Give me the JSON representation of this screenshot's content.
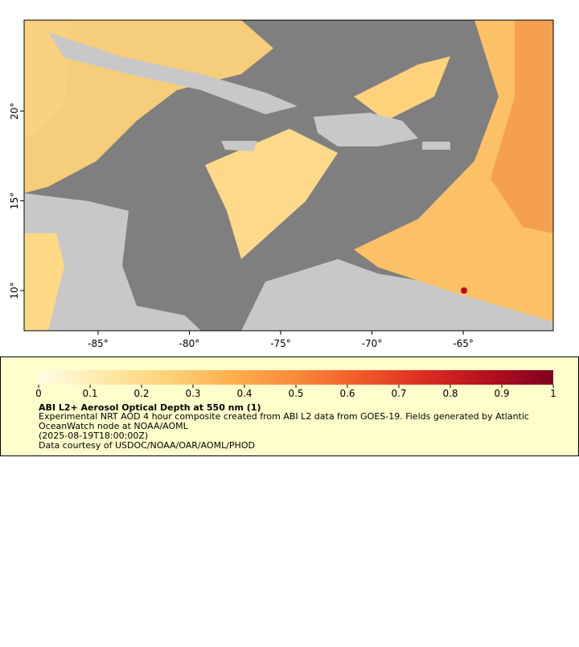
{
  "map": {
    "xlim": [
      -89.05,
      -60.07
    ],
    "ylim": [
      7.76,
      25.07
    ],
    "xticks": [
      {
        "value": -85,
        "label": "-85°"
      },
      {
        "value": -80,
        "label": "-80°"
      },
      {
        "value": -75,
        "label": "-75°"
      },
      {
        "value": -70,
        "label": "-70°"
      },
      {
        "value": -65,
        "label": "-65°"
      }
    ],
    "yticks": [
      {
        "value": 10,
        "label": "10°"
      },
      {
        "value": 15,
        "label": "15°"
      },
      {
        "value": 20,
        "label": "20°"
      }
    ]
  },
  "colorbar": {
    "lim": [
      0,
      1
    ],
    "ticks": [
      0,
      0.1,
      0.2,
      0.3,
      0.4,
      0.5,
      0.6,
      0.7,
      0.8,
      0.9,
      1
    ],
    "colors": [
      "#fffce6",
      "#fee9a8",
      "#fdd27a",
      "#fcb04f",
      "#f98a38",
      "#f05a2a",
      "#dc2c22",
      "#b3101f",
      "#7f0020"
    ]
  },
  "legend": {
    "title": "ABI L2+ Aerosol Optical Depth at 550 nm (1)",
    "description": "Experimental NRT AOD 4 hour composite created from ABI L2 data from GOES-19. Fields generated by Atlantic OceanWatch node at NOAA/AOML",
    "time": "(2025-08-19T18:00:00Z)",
    "credit": "Data courtesy of USDOC/NOAA/OAR/AOML/PHOD"
  }
}
